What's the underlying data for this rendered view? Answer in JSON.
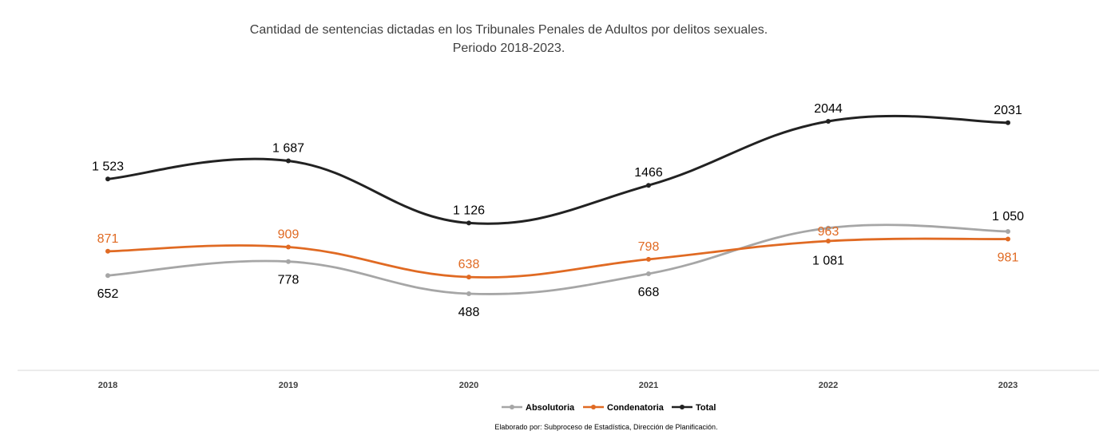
{
  "chart_data": {
    "type": "line",
    "title_line1": "Cantidad de sentencias dictadas en los Tribunales Penales de Adultos por delitos sexuales.",
    "title_line2": "Periodo 2018-2023.",
    "categories": [
      "2018",
      "2019",
      "2020",
      "2021",
      "2022",
      "2023"
    ],
    "series": [
      {
        "name": "Absolutoria",
        "color": "#a6a6a6",
        "values": [
          652,
          778,
          488,
          668,
          1081,
          1050
        ],
        "labels": [
          "652",
          "778",
          "488",
          "668",
          "1 081",
          "1 050"
        ],
        "label_color": "#000000"
      },
      {
        "name": "Condenatoria",
        "color": "#e06a23",
        "values": [
          871,
          909,
          638,
          798,
          963,
          981
        ],
        "labels": [
          "871",
          "909",
          "638",
          "798",
          "963",
          "981"
        ],
        "label_color": "#e06a23"
      },
      {
        "name": "Total",
        "color": "#222222",
        "values": [
          1523,
          1687,
          1126,
          1466,
          2044,
          2031
        ],
        "labels": [
          "1 523",
          "1 687",
          "1 126",
          "1466",
          "2044",
          "2031"
        ],
        "label_color": "#000000"
      }
    ],
    "legend_position": "bottom",
    "grid": false,
    "source": "Elaborado por: Subproceso de Estadística, Dirección de Planificación."
  }
}
